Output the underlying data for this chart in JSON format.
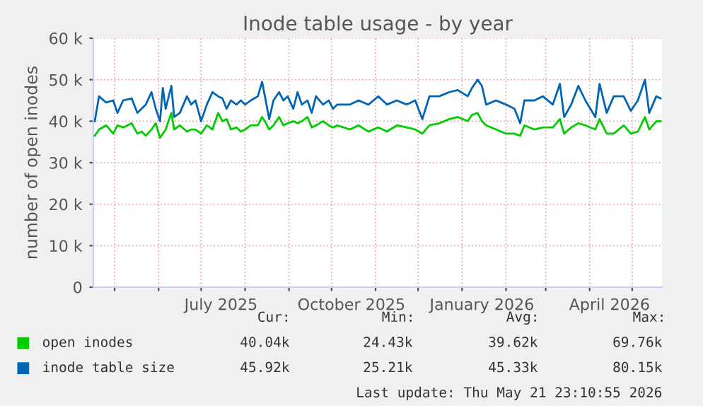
{
  "chart_data": {
    "type": "line",
    "title": "Inode table usage - by year",
    "ylabel": "number of open inodes",
    "x": [
      "2025-04-17",
      "2025-04-20",
      "2025-04-25",
      "2025-04-30",
      "2025-05-03",
      "2025-05-07",
      "2025-05-13",
      "2025-05-17",
      "2025-05-20",
      "2025-05-23",
      "2025-05-27",
      "2025-05-30",
      "2025-06-02",
      "2025-06-04",
      "2025-06-06",
      "2025-06-10",
      "2025-06-12",
      "2025-06-16",
      "2025-06-21",
      "2025-06-24",
      "2025-06-27",
      "2025-07-01",
      "2025-07-05",
      "2025-07-09",
      "2025-07-13",
      "2025-07-16",
      "2025-07-19",
      "2025-07-22",
      "2025-07-26",
      "2025-07-29",
      "2025-08-01",
      "2025-08-05",
      "2025-08-10",
      "2025-08-13",
      "2025-08-15",
      "2025-08-18",
      "2025-08-21",
      "2025-08-25",
      "2025-08-28",
      "2025-08-31",
      "2025-09-04",
      "2025-09-07",
      "2025-09-10",
      "2025-09-14",
      "2025-09-17",
      "2025-09-20",
      "2025-09-25",
      "2025-09-29",
      "2025-10-02",
      "2025-10-05",
      "2025-10-14",
      "2025-10-20",
      "2025-10-27",
      "2025-11-03",
      "2025-11-09",
      "2025-11-16",
      "2025-11-23",
      "2025-11-29",
      "2025-12-04",
      "2025-12-09",
      "2025-12-16",
      "2025-12-23",
      "2025-12-29",
      "2026-01-05",
      "2026-01-08",
      "2026-01-12",
      "2026-01-15",
      "2026-01-18",
      "2026-01-25",
      "2026-02-01",
      "2026-02-07",
      "2026-02-11",
      "2026-02-14",
      "2026-02-21",
      "2026-02-27",
      "2026-03-06",
      "2026-03-11",
      "2026-03-14",
      "2026-03-19",
      "2026-03-24",
      "2026-03-29",
      "2026-04-05",
      "2026-04-08",
      "2026-04-13",
      "2026-04-18",
      "2026-04-25",
      "2026-04-30",
      "2026-05-05",
      "2026-05-10",
      "2026-05-13",
      "2026-05-18",
      "2026-05-21"
    ],
    "series": [
      {
        "name": "open inodes",
        "color": "#00cc00",
        "values": [
          36500,
          38000,
          39000,
          37000,
          39000,
          38500,
          39500,
          37000,
          37500,
          36500,
          38000,
          39500,
          36000,
          37000,
          38000,
          42000,
          38000,
          39000,
          37500,
          38000,
          38000,
          37000,
          39000,
          38000,
          42000,
          40000,
          40500,
          38000,
          38500,
          37500,
          38000,
          39000,
          39000,
          41000,
          40000,
          38000,
          39000,
          41000,
          39000,
          39500,
          40000,
          39500,
          40000,
          41000,
          38500,
          39000,
          40000,
          39000,
          38500,
          39000,
          38000,
          39000,
          37500,
          38500,
          37500,
          39000,
          38500,
          38000,
          37000,
          39000,
          39500,
          40500,
          41000,
          40000,
          41500,
          42000,
          40000,
          39000,
          38000,
          37000,
          37000,
          36500,
          39000,
          38000,
          38500,
          38500,
          40500,
          37000,
          38500,
          39500,
          39000,
          38000,
          40500,
          37000,
          37000,
          39000,
          37000,
          37500,
          41000,
          38000,
          40000,
          40000
        ]
      },
      {
        "name": "inode table size",
        "color": "#0066b3",
        "values": [
          40000,
          46000,
          44500,
          45000,
          42000,
          45000,
          45500,
          42000,
          43000,
          44000,
          47000,
          43000,
          40000,
          48000,
          43000,
          48500,
          41000,
          42000,
          46000,
          44000,
          45000,
          40000,
          44000,
          47000,
          46000,
          45500,
          43000,
          45000,
          44000,
          45000,
          44000,
          45000,
          46000,
          49500,
          46000,
          40500,
          45000,
          47000,
          45000,
          46000,
          43000,
          47000,
          44000,
          45000,
          42000,
          46000,
          44000,
          45000,
          43000,
          44000,
          44000,
          45000,
          44000,
          46000,
          44000,
          45000,
          44000,
          45000,
          40500,
          46000,
          46000,
          47000,
          47500,
          46000,
          48000,
          50000,
          48500,
          44000,
          45000,
          44000,
          43000,
          39500,
          45000,
          45000,
          46000,
          44000,
          49000,
          41000,
          44000,
          48500,
          45000,
          41000,
          49000,
          42000,
          46000,
          46000,
          42500,
          45000,
          50000,
          42000,
          46000,
          45500
        ]
      }
    ],
    "xlim": [
      "2025-04-16",
      "2026-05-22"
    ],
    "xticks": [
      {
        "value": "2025-05-01",
        "label": null
      },
      {
        "value": "2025-06-01",
        "label": null
      },
      {
        "value": "2025-07-01",
        "label": null
      },
      {
        "value": "2025-07-15",
        "label": "July 2025"
      },
      {
        "value": "2025-08-01",
        "label": null
      },
      {
        "value": "2025-09-01",
        "label": null
      },
      {
        "value": "2025-10-01",
        "label": null
      },
      {
        "value": "2025-10-15",
        "label": "October 2025"
      },
      {
        "value": "2025-11-01",
        "label": null
      },
      {
        "value": "2025-12-01",
        "label": null
      },
      {
        "value": "2026-01-01",
        "label": null
      },
      {
        "value": "2026-01-15",
        "label": "January 2026"
      },
      {
        "value": "2026-02-01",
        "label": null
      },
      {
        "value": "2026-03-01",
        "label": null
      },
      {
        "value": "2026-04-01",
        "label": null
      },
      {
        "value": "2026-04-15",
        "label": "April 2026"
      },
      {
        "value": "2026-05-01",
        "label": null
      }
    ],
    "ylim": [
      0,
      60000
    ],
    "yticks": [
      0,
      {
        "value": 10000,
        "label": "10 k"
      },
      {
        "value": 20000,
        "label": "20 k"
      },
      {
        "value": 30000,
        "label": "30 k"
      },
      {
        "value": 40000,
        "label": "40 k"
      },
      {
        "value": 50000,
        "label": "50 k"
      },
      {
        "value": 60000,
        "label": "60 k"
      }
    ],
    "grid": true,
    "legend": "bottom left",
    "line_style": "solid",
    "marker": "none",
    "annotations": [
      "Cur:",
      "Min:",
      "Avg:",
      "Max:",
      "40.04k",
      "24.43k",
      "39.62k",
      "69.76k",
      "45.92k",
      "25.21k",
      "45.33k",
      "80.15k",
      "Last update: Thu May 21 23:10:55 2026"
    ]
  }
}
